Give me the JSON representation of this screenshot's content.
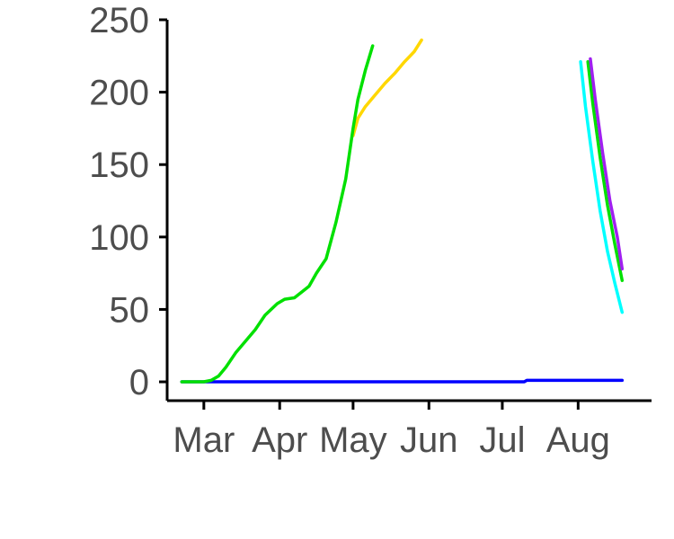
{
  "chart_data": {
    "type": "line",
    "title": "",
    "xlabel": "",
    "ylabel": "",
    "x_axis": {
      "type": "date",
      "range": [
        "2020-02-15",
        "2020-08-31"
      ],
      "ticks": [
        {
          "date": "2020-03-01",
          "label": "Mar"
        },
        {
          "date": "2020-04-01",
          "label": "Apr"
        },
        {
          "date": "2020-05-01",
          "label": "May"
        },
        {
          "date": "2020-06-01",
          "label": "Jun"
        },
        {
          "date": "2020-07-01",
          "label": "Jul"
        },
        {
          "date": "2020-08-01",
          "label": "Aug"
        }
      ]
    },
    "y_axis": {
      "range": [
        -13,
        250
      ],
      "ticks": [
        0,
        50,
        100,
        150,
        200,
        250
      ]
    },
    "grid": false,
    "legend": "none",
    "series": [
      {
        "color": "#0000ff",
        "points": [
          {
            "x": "2020-02-21",
            "y": 0
          },
          {
            "x": "2020-03-10",
            "y": 0
          },
          {
            "x": "2020-06-01",
            "y": 0
          },
          {
            "x": "2020-07-10",
            "y": 0
          },
          {
            "x": "2020-07-11",
            "y": 1
          },
          {
            "x": "2020-08-19",
            "y": 1
          }
        ]
      },
      {
        "color": "#ffd700",
        "points": [
          {
            "x": "2020-05-01",
            "y": 170
          },
          {
            "x": "2020-05-03",
            "y": 182
          },
          {
            "x": "2020-05-06",
            "y": 190
          },
          {
            "x": "2020-05-10",
            "y": 198
          },
          {
            "x": "2020-05-14",
            "y": 206
          },
          {
            "x": "2020-05-18",
            "y": 213
          },
          {
            "x": "2020-05-22",
            "y": 221
          },
          {
            "x": "2020-05-26",
            "y": 228
          },
          {
            "x": "2020-05-29",
            "y": 236
          }
        ]
      },
      {
        "color": "#00e000",
        "points": [
          {
            "x": "2020-02-21",
            "y": 0
          },
          {
            "x": "2020-03-01",
            "y": 0
          },
          {
            "x": "2020-03-04",
            "y": 1
          },
          {
            "x": "2020-03-07",
            "y": 4
          },
          {
            "x": "2020-03-10",
            "y": 10
          },
          {
            "x": "2020-03-14",
            "y": 20
          },
          {
            "x": "2020-03-18",
            "y": 28
          },
          {
            "x": "2020-03-22",
            "y": 36
          },
          {
            "x": "2020-03-26",
            "y": 46
          },
          {
            "x": "2020-03-31",
            "y": 54
          },
          {
            "x": "2020-04-03",
            "y": 57
          },
          {
            "x": "2020-04-07",
            "y": 58
          },
          {
            "x": "2020-04-10",
            "y": 62
          },
          {
            "x": "2020-04-13",
            "y": 66
          },
          {
            "x": "2020-04-16",
            "y": 75
          },
          {
            "x": "2020-04-20",
            "y": 85
          },
          {
            "x": "2020-04-24",
            "y": 110
          },
          {
            "x": "2020-04-28",
            "y": 140
          },
          {
            "x": "2020-05-01",
            "y": 175
          },
          {
            "x": "2020-05-03",
            "y": 195
          },
          {
            "x": "2020-05-06",
            "y": 215
          },
          {
            "x": "2020-05-09",
            "y": 232
          }
        ]
      },
      {
        "color": "#00ffff",
        "points": [
          {
            "x": "2020-08-02",
            "y": 221
          },
          {
            "x": "2020-08-04",
            "y": 190
          },
          {
            "x": "2020-08-07",
            "y": 152
          },
          {
            "x": "2020-08-10",
            "y": 118
          },
          {
            "x": "2020-08-13",
            "y": 90
          },
          {
            "x": "2020-08-16",
            "y": 68
          },
          {
            "x": "2020-08-19",
            "y": 48
          }
        ]
      },
      {
        "color": "#00e000",
        "points": [
          {
            "x": "2020-08-05",
            "y": 221
          },
          {
            "x": "2020-08-07",
            "y": 192
          },
          {
            "x": "2020-08-10",
            "y": 155
          },
          {
            "x": "2020-08-13",
            "y": 122
          },
          {
            "x": "2020-08-16",
            "y": 95
          },
          {
            "x": "2020-08-19",
            "y": 70
          }
        ]
      },
      {
        "color": "#a020f0",
        "points": [
          {
            "x": "2020-08-06",
            "y": 223
          },
          {
            "x": "2020-08-08",
            "y": 195
          },
          {
            "x": "2020-08-11",
            "y": 158
          },
          {
            "x": "2020-08-14",
            "y": 125
          },
          {
            "x": "2020-08-17",
            "y": 100
          },
          {
            "x": "2020-08-19",
            "y": 78
          }
        ]
      }
    ]
  }
}
